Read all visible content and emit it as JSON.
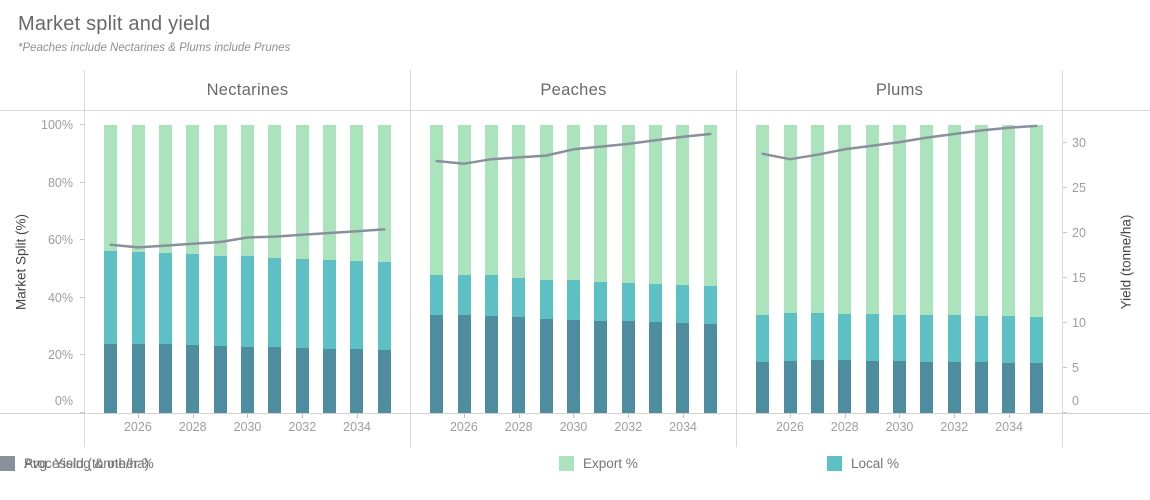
{
  "title": "Market split and yield",
  "subtitle": "*Peaches include Nectarines & Plums include Prunes",
  "colors": {
    "export": "#abe3bd",
    "local": "#5cc0c4",
    "processing": "#4e8ca0",
    "yield": "#8a909b",
    "axis_line": "#d9d9d9"
  },
  "axes": {
    "left_title": "Market Split (%)",
    "left_ticks": [
      {
        "label": "0%",
        "value": 0
      },
      {
        "label": "20%",
        "value": 20
      },
      {
        "label": "40%",
        "value": 40
      },
      {
        "label": "60%",
        "value": 60
      },
      {
        "label": "80%",
        "value": 80
      },
      {
        "label": "100%",
        "value": 100
      }
    ],
    "right_title": "Yield (tonne/ha)",
    "right_ticks": [
      {
        "label": "0",
        "value": 0
      },
      {
        "label": "5",
        "value": 5
      },
      {
        "label": "10",
        "value": 10
      },
      {
        "label": "15",
        "value": 15
      },
      {
        "label": "20",
        "value": 20
      },
      {
        "label": "25",
        "value": 25
      },
      {
        "label": "30",
        "value": 30
      }
    ],
    "x_labeled_years": [
      2026,
      2028,
      2030,
      2032,
      2034
    ]
  },
  "legend": [
    {
      "label": "Export %",
      "color_key": "export"
    },
    {
      "label": "Local %",
      "color_key": "local"
    },
    {
      "label": "Processing & other %",
      "color_key": "processing"
    },
    {
      "label": "Avg. Yield (tonne/ha)",
      "color_key": "yield"
    }
  ],
  "chart_data": {
    "type": "bar",
    "subtype": "stacked-100pct-bars-with-yield-line",
    "years": [
      2025,
      2026,
      2027,
      2028,
      2029,
      2030,
      2031,
      2032,
      2033,
      2034,
      2035
    ],
    "ylim_left_percent": [
      0,
      100
    ],
    "ylim_right_tonne_ha": [
      0,
      32
    ],
    "grid": "off",
    "legend_position": "bottom",
    "panels": [
      {
        "title": "Nectarines",
        "series": [
          {
            "name": "Export %",
            "type": "bar-top",
            "values": [
              43.8,
              44.0,
              44.4,
              44.9,
              45.4,
              45.6,
              46.1,
              46.5,
              46.9,
              47.3,
              47.7
            ]
          },
          {
            "name": "Local %",
            "type": "bar-middle",
            "values": [
              32.2,
              32.0,
              31.8,
              31.6,
              31.4,
              31.4,
              31.1,
              30.9,
              30.7,
              30.5,
              30.3
            ]
          },
          {
            "name": "Processing & other %",
            "type": "bar-bottom",
            "values": [
              24.0,
              24.0,
              23.8,
              23.5,
              23.2,
              23.0,
              22.8,
              22.6,
              22.4,
              22.2,
              22.0
            ]
          },
          {
            "name": "Avg. Yield (tonne/ha)",
            "type": "line",
            "values": [
              18.7,
              18.4,
              18.6,
              18.8,
              19.0,
              19.5,
              19.6,
              19.8,
              20.0,
              20.2,
              20.4
            ]
          }
        ]
      },
      {
        "title": "Peaches",
        "series": [
          {
            "name": "Export %",
            "type": "bar-top",
            "values": [
              52.1,
              52.1,
              52.1,
              53.0,
              53.7,
              53.7,
              54.5,
              54.7,
              55.3,
              55.6,
              56.0
            ]
          },
          {
            "name": "Local %",
            "type": "bar-middle",
            "values": [
              13.9,
              13.9,
              14.1,
              13.8,
              13.6,
              14.0,
              13.5,
              13.5,
              13.2,
              13.2,
              13.0
            ]
          },
          {
            "name": "Processing & other %",
            "type": "bar-bottom",
            "values": [
              34.0,
              34.0,
              33.8,
              33.2,
              32.7,
              32.3,
              32.0,
              31.8,
              31.5,
              31.2,
              31.0
            ]
          },
          {
            "name": "Avg. Yield (tonne/ha)",
            "type": "line",
            "values": [
              28.0,
              27.7,
              28.2,
              28.4,
              28.6,
              29.3,
              29.6,
              29.9,
              30.3,
              30.7,
              31.0
            ]
          }
        ]
      },
      {
        "title": "Plums",
        "series": [
          {
            "name": "Export %",
            "type": "bar-top",
            "values": [
              66.0,
              65.1,
              65.1,
              65.5,
              65.5,
              65.8,
              65.8,
              66.0,
              66.3,
              66.3,
              66.6
            ]
          },
          {
            "name": "Local %",
            "type": "bar-middle",
            "values": [
              16.3,
              16.9,
              16.6,
              16.2,
              16.5,
              16.3,
              16.4,
              16.3,
              16.1,
              16.2,
              15.9
            ]
          },
          {
            "name": "Processing & other %",
            "type": "bar-bottom",
            "values": [
              17.7,
              18.0,
              18.3,
              18.3,
              18.0,
              17.9,
              17.8,
              17.7,
              17.6,
              17.5,
              17.5
            ]
          },
          {
            "name": "Avg. Yield (tonne/ha)",
            "type": "line",
            "values": [
              28.8,
              28.2,
              28.7,
              29.3,
              29.7,
              30.1,
              30.6,
              31.0,
              31.4,
              31.7,
              31.9
            ]
          }
        ]
      }
    ]
  }
}
